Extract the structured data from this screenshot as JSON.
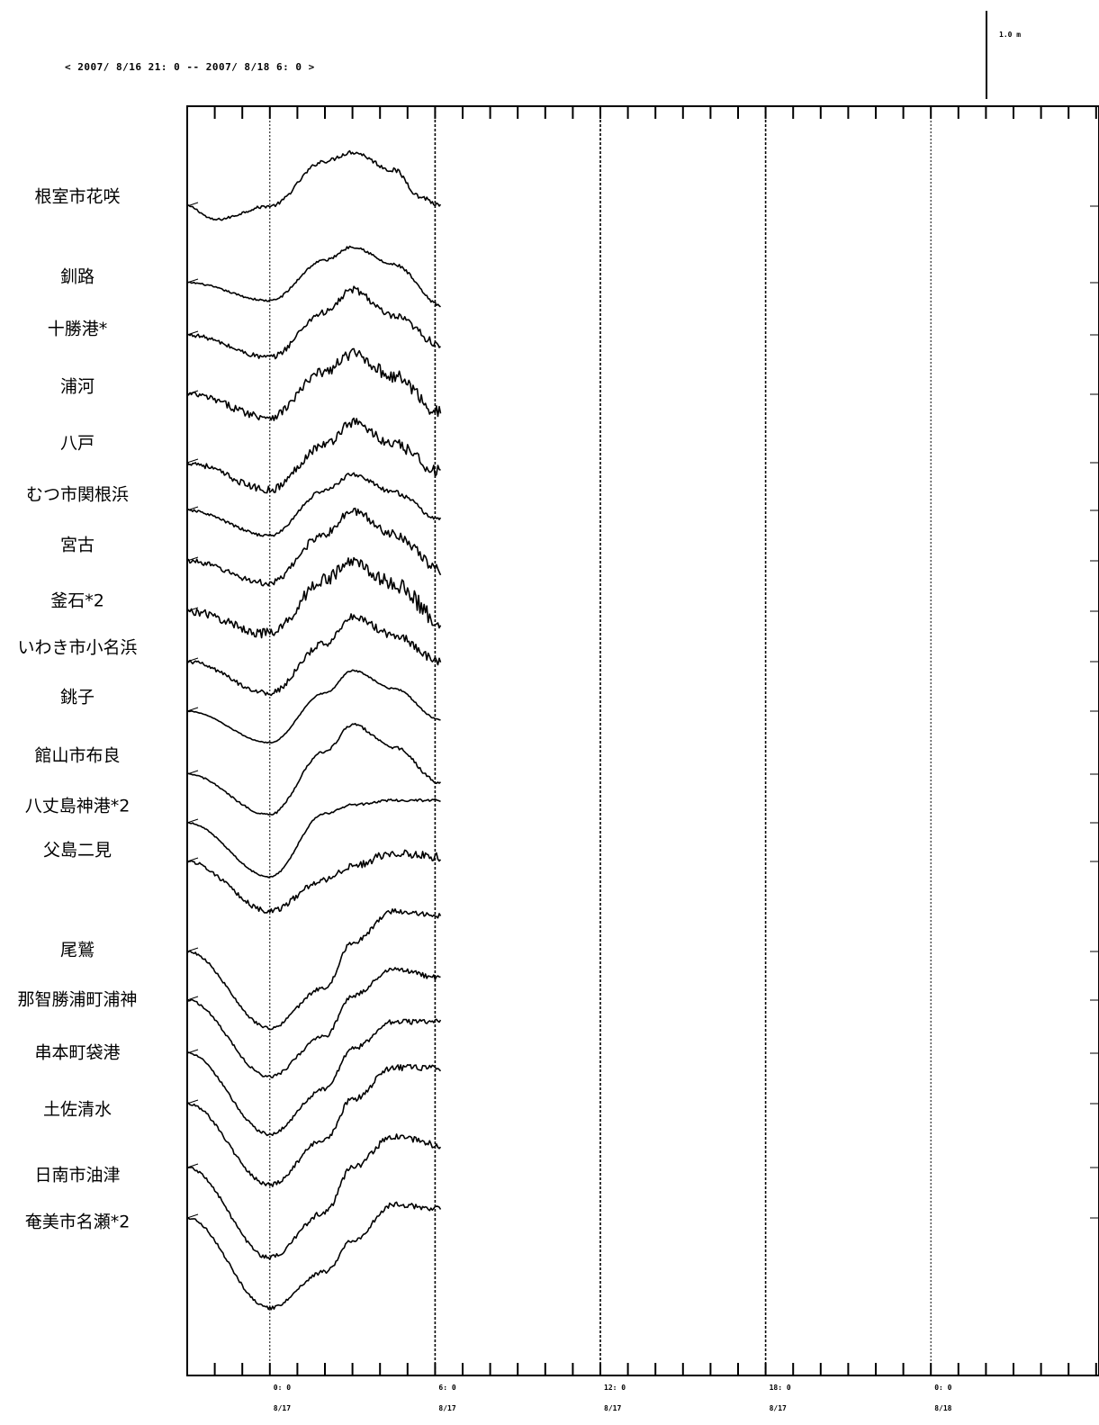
{
  "period_label": "< 2007/ 8/16 21: 0 -- 2007/ 8/18  6: 0 >",
  "scale_label": "1.0 m",
  "axis": {
    "time_labels": [
      "0: 0",
      "6: 0",
      "12: 0",
      "18: 0",
      "0: 0"
    ],
    "date_labels": [
      "8/17",
      "8/17",
      "8/17",
      "8/17",
      "8/18"
    ]
  },
  "stations": [
    {
      "name": "根室市花咲"
    },
    {
      "name": "釧路"
    },
    {
      "name": "十勝港*"
    },
    {
      "name": "浦河"
    },
    {
      "name": "八戸"
    },
    {
      "name": "むつ市関根浜"
    },
    {
      "name": "宮古"
    },
    {
      "name": "釜石*2"
    },
    {
      "name": "いわき市小名浜"
    },
    {
      "name": "銚子"
    },
    {
      "name": "館山市布良"
    },
    {
      "name": "八丈島神港*2"
    },
    {
      "name": "父島二見"
    },
    {
      "name": "尾鷲"
    },
    {
      "name": "那智勝浦町浦神"
    },
    {
      "name": "串本町袋港"
    },
    {
      "name": "土佐清水"
    },
    {
      "name": "日南市油津"
    },
    {
      "name": "奄美市名瀬*2"
    }
  ],
  "chart_data": {
    "type": "line",
    "title": "< 2007/ 8/16 21: 0 -- 2007/ 8/18  6: 0 >",
    "xlabel": "",
    "ylabel": "",
    "x_range": [
      "2007-08-16 21:00",
      "2007-08-18 06:00"
    ],
    "x_tick_labels": [
      "0: 0 8/17",
      "6: 0 8/17",
      "12: 0 8/17",
      "18: 0 8/17",
      "0: 0 8/18"
    ],
    "y_scale_bar": "1.0 m",
    "data_end": "2007-08-17 09:20",
    "series": [
      {
        "name": "根室市花咲",
        "x_hours": [
          0,
          1.0,
          3.0,
          5.0,
          6.0,
          7.5,
          8.5,
          9.2
        ],
        "y_m": [
          0,
          -0.15,
          0,
          0.5,
          0.6,
          0.4,
          0.1,
          0.0
        ],
        "noise_m": 0.03
      },
      {
        "name": "釧路",
        "x_hours": [
          0,
          3.0,
          5.0,
          6.0,
          7.5,
          9.2
        ],
        "y_m": [
          0,
          -0.2,
          0.25,
          0.4,
          0.2,
          -0.25
        ],
        "noise_m": 0.02
      },
      {
        "name": "十勝港*",
        "x_hours": [
          0,
          3.0,
          5.0,
          6.0,
          7.5,
          9.2
        ],
        "y_m": [
          0,
          -0.25,
          0.25,
          0.5,
          0.2,
          -0.1
        ],
        "noise_m": 0.05
      },
      {
        "name": "浦河",
        "x_hours": [
          0,
          3.0,
          5.0,
          6.0,
          7.5,
          9.2
        ],
        "y_m": [
          0,
          -0.25,
          0.25,
          0.45,
          0.2,
          -0.2
        ],
        "noise_m": 0.08
      },
      {
        "name": "八戸",
        "x_hours": [
          0,
          3.0,
          5.0,
          6.0,
          7.5,
          9.2
        ],
        "y_m": [
          0,
          -0.3,
          0.2,
          0.45,
          0.2,
          -0.1
        ],
        "noise_m": 0.07
      },
      {
        "name": "むつ市関根浜",
        "x_hours": [
          0,
          3.0,
          5.0,
          6.0,
          7.5,
          9.2
        ],
        "y_m": [
          0,
          -0.28,
          0.22,
          0.4,
          0.2,
          -0.1
        ],
        "noise_m": 0.03
      },
      {
        "name": "宮古",
        "x_hours": [
          0,
          3.0,
          5.0,
          6.0,
          7.5,
          9.2
        ],
        "y_m": [
          0,
          -0.25,
          0.3,
          0.55,
          0.3,
          -0.1
        ],
        "noise_m": 0.06
      },
      {
        "name": "釜石*2",
        "x_hours": [
          0,
          3.0,
          5.0,
          6.0,
          7.5,
          9.2
        ],
        "y_m": [
          0,
          -0.25,
          0.35,
          0.55,
          0.3,
          -0.1
        ],
        "noise_m": 0.1
      },
      {
        "name": "いわき市小名浜",
        "x_hours": [
          0,
          3.0,
          5.0,
          6.0,
          7.5,
          9.2
        ],
        "y_m": [
          0,
          -0.35,
          0.2,
          0.5,
          0.3,
          0.0
        ],
        "noise_m": 0.05
      },
      {
        "name": "銚子",
        "x_hours": [
          0,
          3.0,
          5.0,
          6.0,
          7.5,
          9.2
        ],
        "y_m": [
          0,
          -0.35,
          0.2,
          0.45,
          0.25,
          -0.1
        ],
        "noise_m": 0.01
      },
      {
        "name": "館山市布良",
        "x_hours": [
          0,
          3.0,
          5.0,
          6.0,
          7.5,
          9.2
        ],
        "y_m": [
          0,
          -0.45,
          0.25,
          0.55,
          0.3,
          -0.1
        ],
        "noise_m": 0.02
      },
      {
        "name": "八丈島神港*2",
        "x_hours": [
          0,
          3.0,
          5.0,
          6.0,
          7.5,
          9.2
        ],
        "y_m": [
          0,
          -0.6,
          0.1,
          0.2,
          0.25,
          0.25
        ],
        "noise_m": 0.015
      },
      {
        "name": "父島二見",
        "x_hours": [
          0,
          3.0,
          5.0,
          6.0,
          7.5,
          9.2
        ],
        "y_m": [
          0,
          -0.55,
          -0.2,
          -0.05,
          0.1,
          0.05
        ],
        "noise_m": 0.05
      },
      {
        "name": "尾鷲",
        "x_hours": [
          0,
          3.0,
          5.0,
          6.0,
          7.5,
          9.2
        ],
        "y_m": [
          0,
          -0.85,
          -0.4,
          0.1,
          0.45,
          0.4
        ],
        "noise_m": 0.03
      },
      {
        "name": "那智勝浦町浦神",
        "x_hours": [
          0,
          3.0,
          5.0,
          6.0,
          7.5,
          9.2
        ],
        "y_m": [
          0,
          -0.85,
          -0.4,
          0.05,
          0.35,
          0.25
        ],
        "noise_m": 0.03
      },
      {
        "name": "串本町袋港",
        "x_hours": [
          0,
          3.0,
          5.0,
          6.0,
          7.5,
          9.2
        ],
        "y_m": [
          0,
          -0.9,
          -0.4,
          0.05,
          0.35,
          0.35
        ],
        "noise_m": 0.03
      },
      {
        "name": "土佐清水",
        "x_hours": [
          0,
          3.0,
          5.0,
          6.0,
          7.5,
          9.2
        ],
        "y_m": [
          0,
          -0.9,
          -0.4,
          0.05,
          0.4,
          0.4
        ],
        "noise_m": 0.04
      },
      {
        "name": "日南市油津",
        "x_hours": [
          0,
          3.0,
          5.0,
          6.0,
          7.5,
          9.2
        ],
        "y_m": [
          0,
          -1.0,
          -0.5,
          0.0,
          0.35,
          0.25
        ],
        "noise_m": 0.04
      },
      {
        "name": "奄美市名瀬*2",
        "x_hours": [
          0,
          3.0,
          5.0,
          6.0,
          7.5,
          9.2
        ],
        "y_m": [
          0,
          -1.0,
          -0.6,
          -0.25,
          0.15,
          0.1
        ],
        "noise_m": 0.03
      }
    ]
  }
}
